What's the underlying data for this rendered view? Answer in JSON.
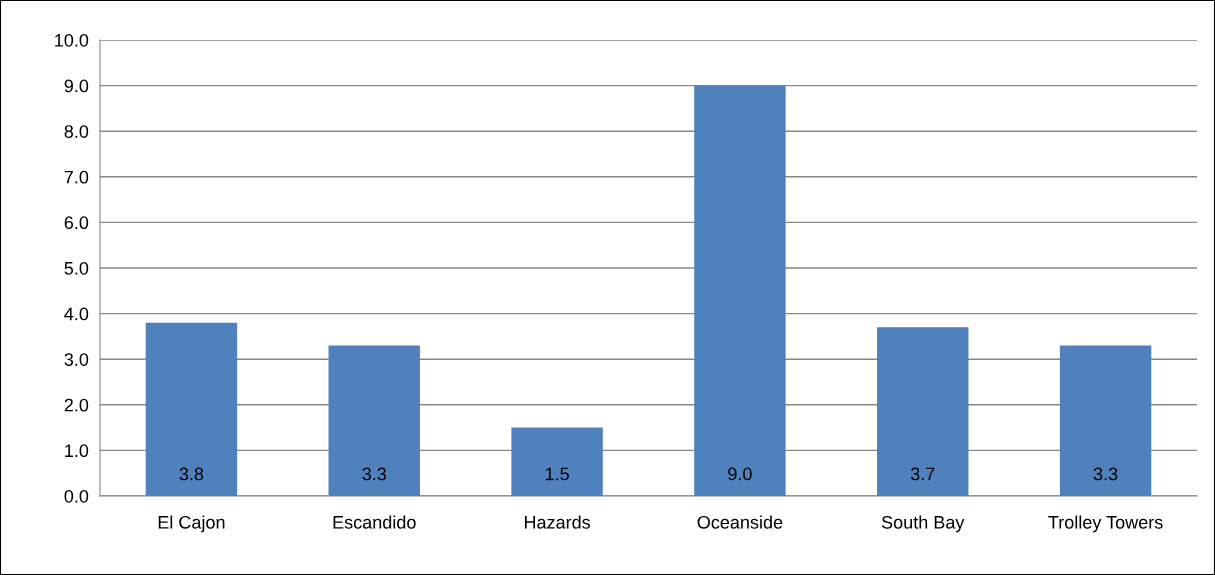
{
  "chart_data": {
    "type": "bar",
    "categories": [
      "El Cajon",
      "Escandido",
      "Hazards",
      "Oceanside",
      "South Bay",
      "Trolley Towers"
    ],
    "values": [
      3.8,
      3.3,
      1.5,
      9.0,
      3.7,
      3.3
    ],
    "color": "#4f81bd",
    "ylim": [
      0,
      10
    ],
    "yticks": [
      {
        "value": 0,
        "label": "0.0"
      },
      {
        "value": 1,
        "label": "1.0"
      },
      {
        "value": 2,
        "label": "2.0"
      },
      {
        "value": 3,
        "label": "3.0"
      },
      {
        "value": 4,
        "label": "4.0"
      },
      {
        "value": 5,
        "label": "5.0"
      },
      {
        "value": 6,
        "label": "6.0"
      },
      {
        "value": 7,
        "label": "7.0"
      },
      {
        "value": 8,
        "label": "8.0"
      },
      {
        "value": 9,
        "label": "9.0"
      },
      {
        "value": 10,
        "label": "10.0"
      }
    ],
    "grid": "y",
    "value_labels": [
      "3.8",
      "3.3",
      "1.5",
      "9.0",
      "3.7",
      "3.3"
    ]
  }
}
